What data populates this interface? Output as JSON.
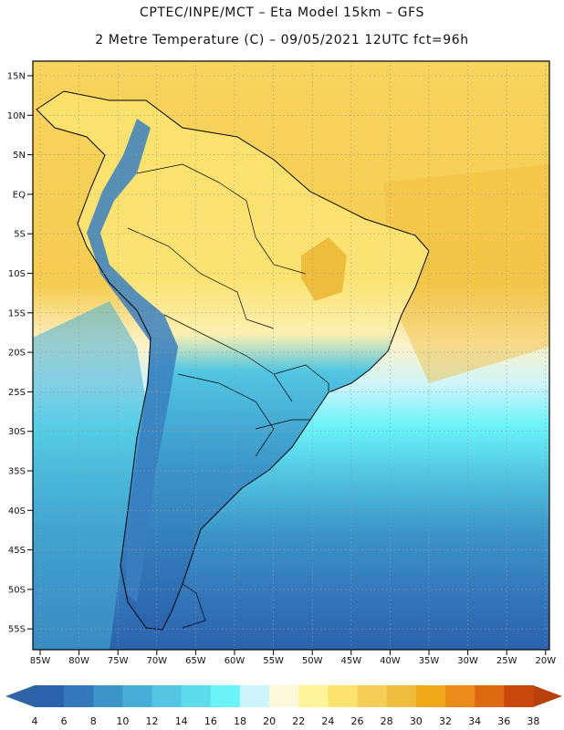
{
  "header": {
    "line1": "CPTEC/INPE/MCT –  Eta Model 15km – GFS",
    "line2": "2 Metre Temperature (C) – 09/05/2021 12UTC fct=96h"
  },
  "axes": {
    "lat_labels": [
      "15N",
      "10N",
      "5N",
      "EQ",
      "5S",
      "10S",
      "15S",
      "20S",
      "25S",
      "30S",
      "35S",
      "40S",
      "45S",
      "50S",
      "55S"
    ],
    "lon_labels": [
      "85W",
      "80W",
      "75W",
      "70W",
      "65W",
      "60W",
      "55W",
      "50W",
      "45W",
      "40W",
      "35W",
      "30W",
      "25W",
      "20W"
    ]
  },
  "colorbar": {
    "ticks": [
      "4",
      "6",
      "8",
      "10",
      "12",
      "14",
      "16",
      "18",
      "20",
      "22",
      "24",
      "26",
      "28",
      "30",
      "32",
      "34",
      "36",
      "38"
    ],
    "colors": [
      "#2b62ad",
      "#3478bc",
      "#3b95c9",
      "#46aed6",
      "#52c6e2",
      "#5edcee",
      "#6af4fa",
      "#cdf5fb",
      "#fdf7dc",
      "#fef59a",
      "#fbe36e",
      "#f7cf58",
      "#efbd3e",
      "#f0a818",
      "#ec8b17",
      "#dd6a10",
      "#c9470b"
    ],
    "left_color": "#2e63a6",
    "right_color": "#b8400b"
  },
  "colors": {
    "ocean_cold": "#2c61a8",
    "ocean_mid": "#50c4e3",
    "ocean_warm": "#f8d45e",
    "land_tropics": "#fbe16c",
    "land_hot": "#f0b43a",
    "andes": "#3a7fbf",
    "coast": "#000000"
  }
}
